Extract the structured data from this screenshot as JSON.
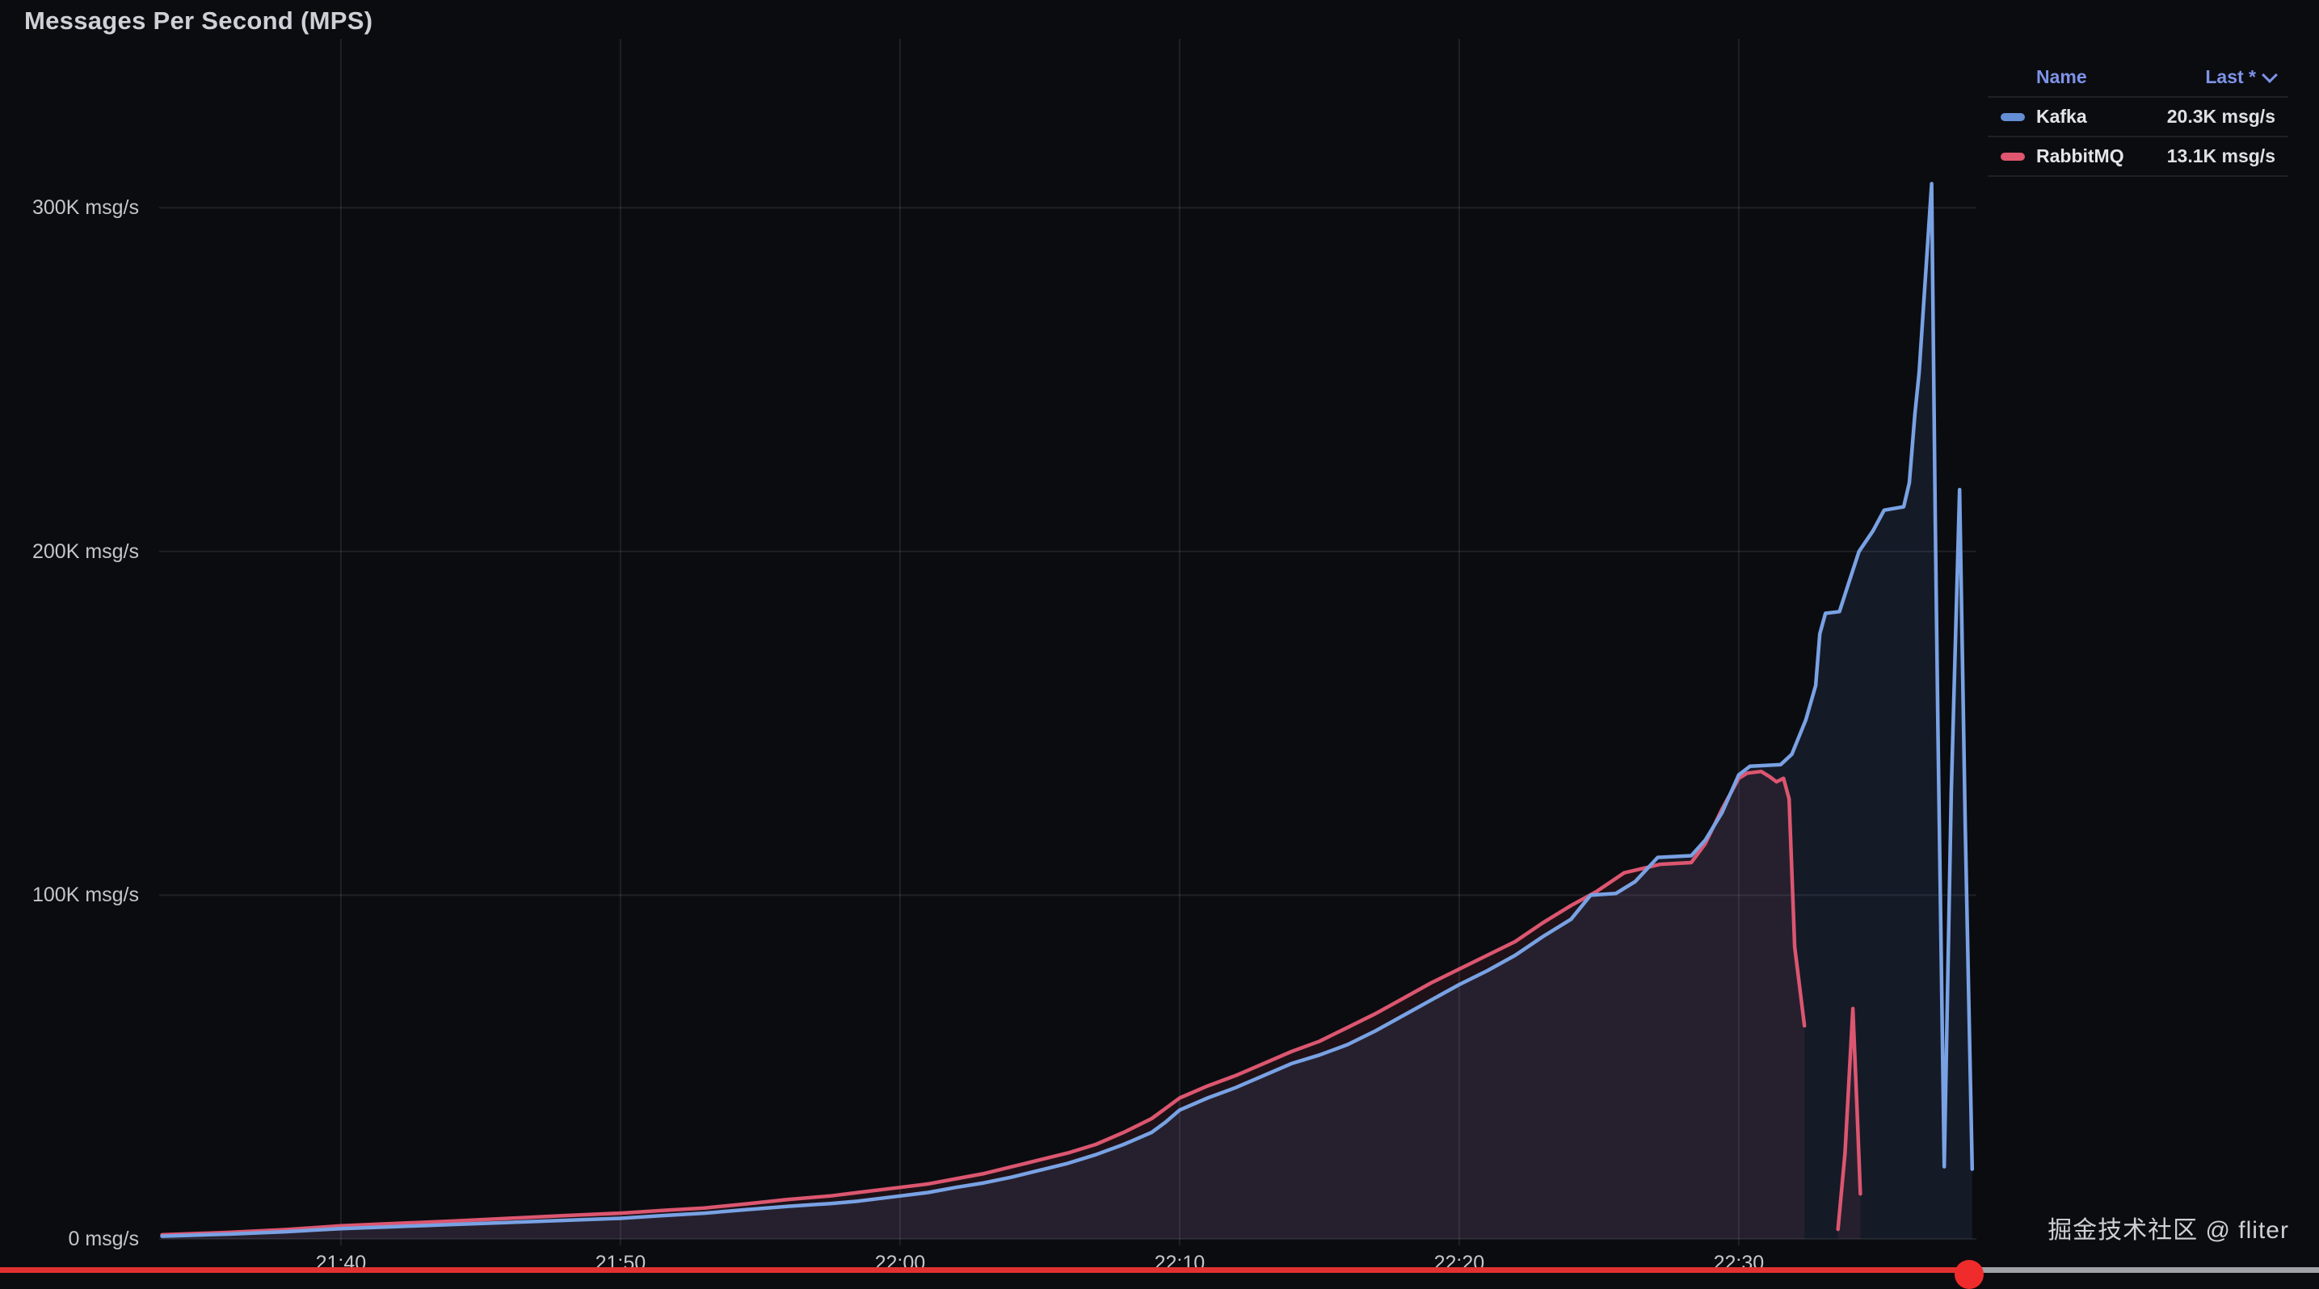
{
  "title": "Messages Per Second (MPS)",
  "watermark": "掘金技术社区 @ fliter",
  "colors": {
    "background": "#0b0c10",
    "kafka_line": "#79a2e4",
    "kafka_fill": "rgba(110,150,225,0.11)",
    "rabbitmq_line": "#dc5670",
    "rabbitmq_fill": "rgba(222,91,115,0.09)",
    "legend_header": "#7e93e8",
    "grid": "rgba(205,214,230,0.10)",
    "axis_text": "#c3c6cb"
  },
  "legend": {
    "columns": [
      "Name",
      "Last *"
    ],
    "rows": [
      {
        "name": "Kafka",
        "last": "20.3K msg/s",
        "color": "#648fd6"
      },
      {
        "name": "RabbitMQ",
        "last": "13.1K msg/s",
        "color": "#e0566f"
      }
    ]
  },
  "player": {
    "progress_pct": 84.9,
    "played_color": "#e03131",
    "remaining_color": "#9fa2a6",
    "dot_color": "#ef2b2b"
  },
  "chart_data": {
    "type": "line",
    "title": "Messages Per Second (MPS)",
    "y_unit": "msg/s",
    "x_unit": "time",
    "legend_position": "top-right",
    "grid": true,
    "x_range_minutes_after_2100": [
      33.5,
      98.5
    ],
    "ylim_k_msgs": [
      0,
      330
    ],
    "x_ticks": [
      {
        "t": 40,
        "label": "21:40"
      },
      {
        "t": 50,
        "label": "21:50"
      },
      {
        "t": 60,
        "label": "22:00"
      },
      {
        "t": 70,
        "label": "22:10"
      },
      {
        "t": 80,
        "label": "22:20"
      },
      {
        "t": 90,
        "label": "22:30"
      }
    ],
    "y_ticks": [
      {
        "v": 0,
        "label": "0 msg/s"
      },
      {
        "v": 100,
        "label": "100K msg/s"
      },
      {
        "v": 200,
        "label": "200K msg/s"
      },
      {
        "v": 300,
        "label": "300K msg/s"
      }
    ],
    "series": [
      {
        "name": "Kafka",
        "last_value_label": "20.3K msg/s",
        "color": "#79a2e4",
        "fill": "rgba(110,150,225,0.11)",
        "segments": [
          {
            "t_min": [
              33.6,
              36,
              38,
              40,
              42,
              44,
              46,
              48,
              50,
              51.5,
              53,
              54.5,
              56,
              57.5,
              58.5,
              60,
              61,
              62,
              63,
              64,
              65,
              66,
              67,
              68,
              69,
              69.5,
              70,
              71,
              72,
              73,
              74,
              75,
              76,
              77,
              78,
              79,
              80,
              81,
              82,
              83,
              84,
              84.7,
              85.6,
              86.3,
              87.1,
              88.3,
              88.8,
              89.4,
              90,
              90.4,
              91.5,
              91.9,
              92.4,
              92.75,
              92.9,
              93.1,
              93.6,
              93.9,
              94.3,
              94.8,
              95.2,
              95.9,
              96.1,
              96.3,
              96.45,
              96.9,
              97.03,
              97.12,
              97.35,
              97.6,
              97.9,
              98.1,
              98.35
            ],
            "v_k": [
              0.8,
              1.4,
              2.1,
              3.0,
              3.6,
              4.2,
              4.8,
              5.4,
              6.0,
              6.8,
              7.5,
              8.5,
              9.5,
              10.3,
              11.0,
              12.5,
              13.5,
              15.0,
              16.3,
              18.0,
              20.0,
              22.0,
              24.5,
              27.5,
              31.0,
              34.0,
              37.5,
              41.0,
              44.0,
              47.5,
              51.0,
              53.5,
              56.5,
              60.5,
              65.0,
              69.5,
              74.0,
              78.0,
              82.5,
              88.0,
              93.0,
              100.0,
              100.5,
              104.0,
              111.0,
              111.5,
              116.0,
              124.0,
              135.0,
              137.5,
              138.0,
              141.0,
              151.0,
              161.0,
              176.0,
              182.0,
              182.5,
              190.0,
              200.0,
              206.0,
              212.0,
              213.0,
              220.0,
              240.0,
              252.0,
              307.0,
              209.0,
              150.0,
              21.0,
              130.0,
              218.0,
              120.0,
              20.3
            ]
          }
        ]
      },
      {
        "name": "RabbitMQ",
        "last_value_label": "13.1K msg/s",
        "color": "#dc5670",
        "fill": "rgba(222,91,115,0.09)",
        "segments": [
          {
            "t_min": [
              33.6,
              36,
              38,
              40,
              42,
              44,
              46,
              48,
              50,
              51.5,
              53,
              54.5,
              56,
              57.5,
              58.5,
              60,
              61,
              62,
              63,
              64,
              65,
              66,
              67,
              68,
              69,
              69.5,
              70,
              71,
              72,
              73,
              74,
              75,
              76,
              77,
              78,
              79,
              80,
              81,
              82,
              83,
              84,
              84.9,
              85.9,
              87.2,
              88.3,
              88.8,
              89.4,
              90,
              90.3,
              90.8,
              91.1,
              91.35,
              91.6,
              91.8,
              92.0,
              92.35
            ],
            "v_k": [
              1.2,
              1.9,
              2.7,
              3.8,
              4.5,
              5.2,
              6.0,
              6.8,
              7.5,
              8.3,
              9.0,
              10.2,
              11.5,
              12.5,
              13.5,
              15.0,
              16.0,
              17.5,
              19.0,
              21.0,
              23.0,
              25.0,
              27.5,
              31.0,
              35.0,
              38.0,
              41.0,
              44.5,
              47.5,
              51.0,
              54.5,
              57.5,
              61.5,
              65.5,
              70.0,
              74.5,
              78.5,
              82.5,
              86.5,
              92.0,
              97.0,
              101.0,
              106.5,
              109.0,
              109.5,
              115.0,
              125.0,
              134.0,
              135.5,
              136.0,
              134.5,
              133.0,
              134.0,
              128.0,
              85.0,
              62.0
            ]
          },
          {
            "t_min": [
              93.55,
              93.8,
              94.08,
              94.22,
              94.35
            ],
            "v_k": [
              2.8,
              25.0,
              67.0,
              40.0,
              13.1
            ]
          }
        ]
      }
    ]
  }
}
